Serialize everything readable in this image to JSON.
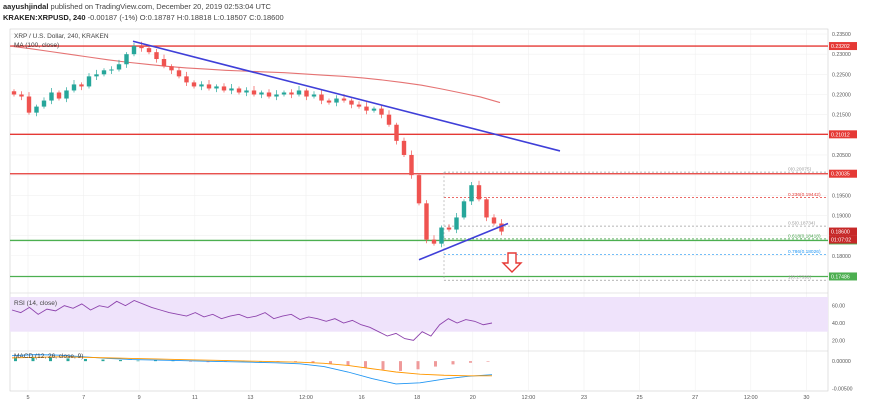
{
  "header": {
    "user": "aayushjindal",
    "published": "published on TradingView.com, December 20, 2019 02:53:04 UTC",
    "symbol": "KRAKEN:XRPUSD, 240",
    "change": "-0.00187 (-1%)",
    "o": "O:0.18787",
    "h": "H:0.18818",
    "l": "L:0.18507",
    "c": "C:0.18600"
  },
  "chart_data": {
    "type": "line",
    "title": "XRP / U.S. Dollar, 240, KRAKEN",
    "ma_label": "MA (100, close)",
    "ylim": [
      0.172,
      0.236
    ],
    "x_ticks": [
      "5",
      "7",
      "9",
      "11",
      "13",
      "12:00",
      "16",
      "18",
      "20",
      "12:00",
      "23",
      "25",
      "27",
      "12:00",
      "30"
    ],
    "y_ticks": [
      "0.23500",
      "0.23000",
      "0.22500",
      "0.22000",
      "0.21500",
      "0.21000",
      "0.20500",
      "0.20000",
      "0.19500",
      "0.19000",
      "0.18500",
      "0.18000"
    ],
    "series": [
      {
        "name": "",
        "values": [
          0.22,
          0.2195,
          0.2155,
          0.217,
          0.2185,
          0.2205,
          0.219,
          0.221,
          0.2225,
          0.222,
          0.2245,
          0.225,
          0.226,
          0.2262,
          0.2275,
          0.23,
          0.232,
          0.2315,
          0.2305,
          0.2288,
          0.227,
          0.226,
          0.2245,
          0.223,
          0.222,
          0.2225,
          0.2215,
          0.222,
          0.221,
          0.2215,
          0.2205,
          0.221,
          0.22,
          0.2205,
          0.2195,
          0.22,
          0.2205,
          0.22,
          0.221,
          0.2195,
          0.22,
          0.2185,
          0.218,
          0.219,
          0.2185,
          0.2175,
          0.217,
          0.216,
          0.2165,
          0.215,
          0.2125,
          0.2085,
          0.205,
          0.2,
          0.193,
          0.184,
          0.183,
          0.187,
          0.1865,
          0.1895,
          0.1935,
          0.1975,
          0.194,
          0.1895,
          0.188,
          0.186
        ]
      }
    ],
    "ma100": [
      0.232,
      0.2314,
      0.2307,
      0.23,
      0.2293,
      0.2286,
      0.228,
      0.2275,
      0.227,
      0.2266,
      0.2263,
      0.226,
      0.2258,
      0.2256,
      0.2254,
      0.2251,
      0.2248,
      0.2245,
      0.2241,
      0.2236,
      0.223,
      0.2223,
      0.2214,
      0.2204,
      0.2194,
      0.218
    ],
    "levels": [
      {
        "value": 0.23202,
        "label": "0.23202",
        "color": "#e53935"
      },
      {
        "value": 0.21012,
        "label": "0.21012",
        "color": "#e53935"
      },
      {
        "value": 0.20035,
        "label": "0.20035",
        "color": "#e53935"
      },
      {
        "value": 0.1838,
        "label": "0.18381",
        "color": "#4caf50"
      },
      {
        "value": 0.17486,
        "label": "0.17486",
        "color": "#4caf50"
      }
    ],
    "price_tags": [
      {
        "label": "0.18600",
        "color": "#c62828"
      },
      {
        "label": "01:07:02",
        "color": "#c62828"
      }
    ],
    "fib": [
      {
        "ratio": "0(0.20075)",
        "value": 0.20075,
        "color": "#9e9e9e"
      },
      {
        "ratio": "0.236(0.19442)",
        "value": 0.19442,
        "color": "#e53935"
      },
      {
        "ratio": "0.5(0.18734)",
        "value": 0.18734,
        "color": "#9e9e9e"
      },
      {
        "ratio": "0.618(0.18418)",
        "value": 0.18418,
        "color": "#43a047"
      },
      {
        "ratio": "0.786(0.18026)",
        "value": 0.18026,
        "color": "#2196f3"
      },
      {
        "ratio": "1(0.17393)",
        "value": 0.17393,
        "color": "#9e9e9e"
      }
    ],
    "rsi": {
      "label": "RSI (14, close)",
      "ticks": [
        "60.00",
        "40.00",
        "20.00"
      ],
      "values": [
        55,
        52,
        58,
        50,
        56,
        54,
        60,
        57,
        62,
        55,
        60,
        58,
        65,
        60,
        66,
        62,
        58,
        55,
        52,
        50,
        48,
        52,
        47,
        50,
        45,
        48,
        50,
        46,
        48,
        52,
        45,
        48,
        50,
        44,
        47,
        45,
        42,
        45,
        40,
        43,
        38,
        35,
        30,
        25,
        28,
        22,
        20,
        30,
        25,
        38,
        45,
        40,
        44,
        42,
        38,
        40
      ]
    },
    "macd": {
      "label": "MACD (12, 26, close, 9)",
      "ticks": [
        "0.00000",
        "-0.00500"
      ],
      "histogram": [
        0.0006,
        0.0008,
        0.0007,
        0.0005,
        0.0004,
        0.0003,
        0.0002,
        0.0001,
        0.0002,
        0.0001,
        -0.0001,
        -0.0002,
        -0.0001,
        0.0001,
        0.0,
        -0.0001,
        -0.0002,
        -0.0003,
        -0.0005,
        -0.0008,
        -0.0012,
        -0.0016,
        -0.0018,
        -0.0015,
        -0.001,
        -0.0006,
        -0.0003,
        -0.0001
      ],
      "macd_line": [
        0.001,
        0.0012,
        0.0011,
        0.0008,
        0.0005,
        0.0003,
        0.0002,
        0.0001,
        0.0,
        -0.0001,
        -0.0002,
        -0.0003,
        -0.0005,
        -0.001,
        -0.002,
        -0.0032,
        -0.0042,
        -0.004,
        -0.0033,
        -0.0028,
        -0.0025
      ],
      "signal_line": [
        0.0006,
        0.0007,
        0.0008,
        0.0007,
        0.0006,
        0.0005,
        0.0004,
        0.0003,
        0.0002,
        0.0001,
        0.0,
        -0.0001,
        -0.0002,
        -0.0004,
        -0.0008,
        -0.0014,
        -0.002,
        -0.0024,
        -0.0026,
        -0.0027,
        -0.0027
      ]
    },
    "colors": {
      "up": "#26a69a",
      "down": "#ef5350",
      "trendline": "#3f3fd8",
      "ma": "#e57373",
      "rsi_band": "#efe3fb"
    }
  }
}
